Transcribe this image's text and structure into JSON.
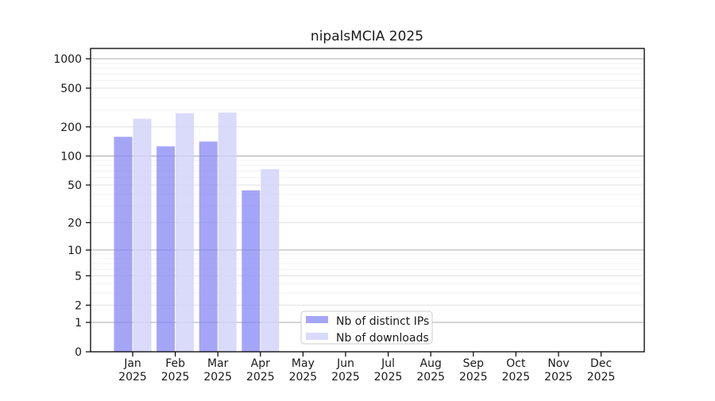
{
  "figure": {
    "title": "nipalsMCIA 2025"
  },
  "chart_data": {
    "type": "bar",
    "title": "nipalsMCIA 2025",
    "categories": [
      "Jan 2025",
      "Feb 2025",
      "Mar 2025",
      "Apr 2025",
      "May 2025",
      "Jun 2025",
      "Jul 2025",
      "Aug 2025",
      "Sep 2025",
      "Oct 2025",
      "Nov 2025",
      "Dec 2025"
    ],
    "series": [
      {
        "name": "Nb of distinct IPs",
        "color": "rgba(135,135,244,0.75)",
        "values": [
          158,
          126,
          141,
          44,
          0,
          0,
          0,
          0,
          0,
          0,
          0,
          0
        ]
      },
      {
        "name": "Nb of downloads",
        "color": "rgba(209,209,249,0.8)",
        "values": [
          242,
          276,
          281,
          73,
          0,
          0,
          0,
          0,
          0,
          0,
          0,
          0
        ]
      }
    ],
    "yscale": "log1p",
    "yticks": [
      1000,
      500,
      200,
      100,
      50,
      20,
      10,
      5,
      2,
      1,
      0
    ],
    "ylim": [
      0,
      1276
    ],
    "xlabel": "",
    "ylabel": "",
    "grid": "horizontal",
    "legend_position": "lower center",
    "colors": {
      "background": "#ffffff",
      "axis": "#000000",
      "text": "#1a1a1a",
      "grid_major": "#ababab",
      "grid_minor": "#e0e0e0",
      "grid_faint": "#f2f2f2",
      "legend_border": "#cccccc"
    }
  }
}
